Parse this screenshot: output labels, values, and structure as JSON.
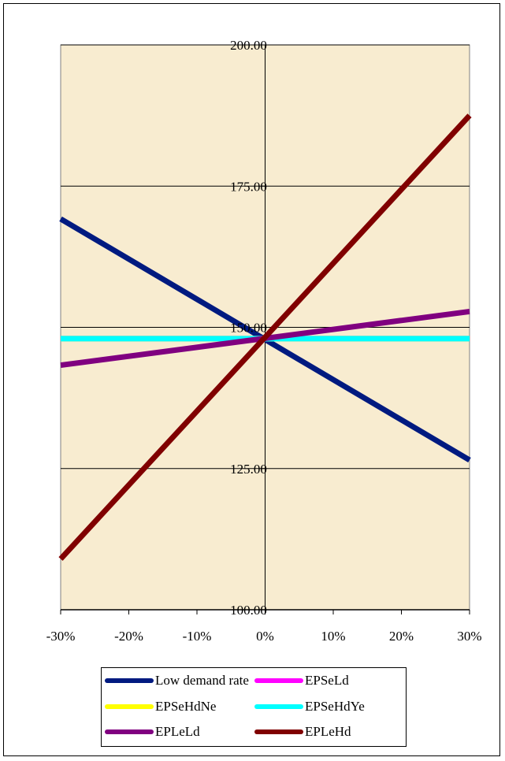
{
  "chart_data": {
    "type": "line",
    "x": [
      -30,
      30
    ],
    "xticks": [
      "-30%",
      "-20%",
      "-10%",
      "0%",
      "10%",
      "20%",
      "30%"
    ],
    "yticks": [
      "100.00",
      "125.00",
      "150.00",
      "175.00",
      "200.00"
    ],
    "ylim": [
      100,
      200
    ],
    "xlim": [
      -30,
      30
    ],
    "grid": "horizontal",
    "legend_position": "bottom",
    "plot_background": "#f8ecd0",
    "series": [
      {
        "name": "Low demand rate",
        "color": "#001a80",
        "values": [
          169.2,
          126.5
        ]
      },
      {
        "name": "EPSeLd",
        "color": "#ff00ff",
        "values": [
          148.0,
          148.0
        ]
      },
      {
        "name": "EPSeHdNe",
        "color": "#ffff00",
        "values": [
          148.0,
          148.0
        ]
      },
      {
        "name": "EPSeHdYe",
        "color": "#00ffff",
        "values": [
          148.0,
          148.0
        ]
      },
      {
        "name": "EPLeLd",
        "color": "#800080",
        "values": [
          143.3,
          152.8
        ]
      },
      {
        "name": "EPLeHd",
        "color": "#800000",
        "values": [
          109.0,
          187.5
        ]
      }
    ]
  }
}
